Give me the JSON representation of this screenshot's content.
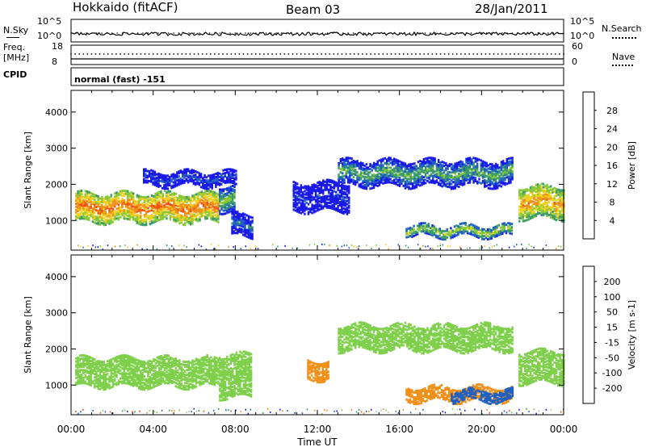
{
  "header": {
    "station": "Hokkaido (fitACF)",
    "beam": "Beam 03",
    "date": "28/Jan/2011"
  },
  "noise_panel": {
    "left_label": "N.Sky",
    "right_label": "N.Search",
    "left_ticks": [
      "10^5",
      "10^0"
    ],
    "right_ticks": [
      "10^5",
      "10^0"
    ]
  },
  "freq_panel": {
    "left_label_1": "Freq.",
    "left_label_2": "[MHz]",
    "right_label": "Nave",
    "left_ticks": [
      "18",
      "8"
    ],
    "right_ticks": [
      "60",
      "0"
    ]
  },
  "cpid": {
    "label": "CPID",
    "value": "normal (fast) -151"
  },
  "colors": {
    "power": [
      "#1818e8",
      "#2060c0",
      "#3a9a6a",
      "#88c838",
      "#f0d020",
      "#f09018",
      "#f05010",
      "#e81010"
    ],
    "velocity": [
      "#e81010",
      "#f05010",
      "#f09018",
      "#bdbdb0",
      "#7ed04a",
      "#3a9a6a",
      "#2060c0",
      "#1818e8"
    ]
  },
  "chart_data": [
    {
      "type": "heatmap",
      "title": "Power",
      "ylabel": "Slant Range [km]",
      "ylim": [
        180,
        4600
      ],
      "yticks": [
        "1000",
        "2000",
        "3000",
        "4000"
      ],
      "colorbar_label": "Power [dB]",
      "colorbar_ticks": [
        "4",
        "8",
        "12",
        "16",
        "20",
        "24",
        "28"
      ],
      "x": [
        "00:00",
        "04:00",
        "08:00",
        "12:00",
        "16:00",
        "20:00",
        "00:00"
      ],
      "regions": [
        {
          "t": [
            0.2,
            7.2
          ],
          "range": [
            1000,
            1800
          ],
          "level": 26
        },
        {
          "t": [
            7.2,
            8.0
          ],
          "range": [
            1300,
            2000
          ],
          "level": 16
        },
        {
          "t": [
            7.8,
            8.8
          ],
          "range": [
            600,
            1200
          ],
          "level": 10
        },
        {
          "t": [
            3.5,
            8.0
          ],
          "range": [
            2000,
            2400
          ],
          "level": 8
        },
        {
          "t": [
            13.0,
            21.5
          ],
          "range": [
            2000,
            2700
          ],
          "level": 14
        },
        {
          "t": [
            16.3,
            21.5
          ],
          "range": [
            600,
            900
          ],
          "level": 18
        },
        {
          "t": [
            21.8,
            24.0
          ],
          "range": [
            1100,
            2000
          ],
          "level": 24
        },
        {
          "t": [
            10.8,
            13.5
          ],
          "range": [
            1300,
            2100
          ],
          "level": 6
        }
      ]
    },
    {
      "type": "heatmap",
      "title": "Velocity",
      "ylabel": "Slant Range [km]",
      "ylim": [
        180,
        4600
      ],
      "yticks": [
        "1000",
        "2000",
        "3000",
        "4000"
      ],
      "colorbar_label": "Velocity [m s-1]",
      "colorbar_ticks": [
        "-200",
        "-100",
        "-50",
        "-15",
        "15",
        "50",
        "100",
        "200"
      ],
      "x": [
        "00:00",
        "04:00",
        "08:00",
        "12:00",
        "16:00",
        "20:00",
        "00:00"
      ],
      "xlabel": "Time UT",
      "regions": [
        {
          "t": [
            0.2,
            7.2
          ],
          "range": [
            1000,
            1800
          ],
          "level": 0
        },
        {
          "t": [
            7.2,
            8.8
          ],
          "range": [
            700,
            1900
          ],
          "level": 0
        },
        {
          "t": [
            13.0,
            21.5
          ],
          "range": [
            2000,
            2700
          ],
          "level": 0
        },
        {
          "t": [
            16.3,
            21.5
          ],
          "range": [
            600,
            1000
          ],
          "level": -60
        },
        {
          "t": [
            18.5,
            21.5
          ],
          "range": [
            600,
            900
          ],
          "level": 60
        },
        {
          "t": [
            11.5,
            12.5
          ],
          "range": [
            1200,
            1700
          ],
          "level": -70
        },
        {
          "t": [
            21.8,
            24.0
          ],
          "range": [
            1100,
            2000
          ],
          "level": 0
        }
      ]
    }
  ]
}
